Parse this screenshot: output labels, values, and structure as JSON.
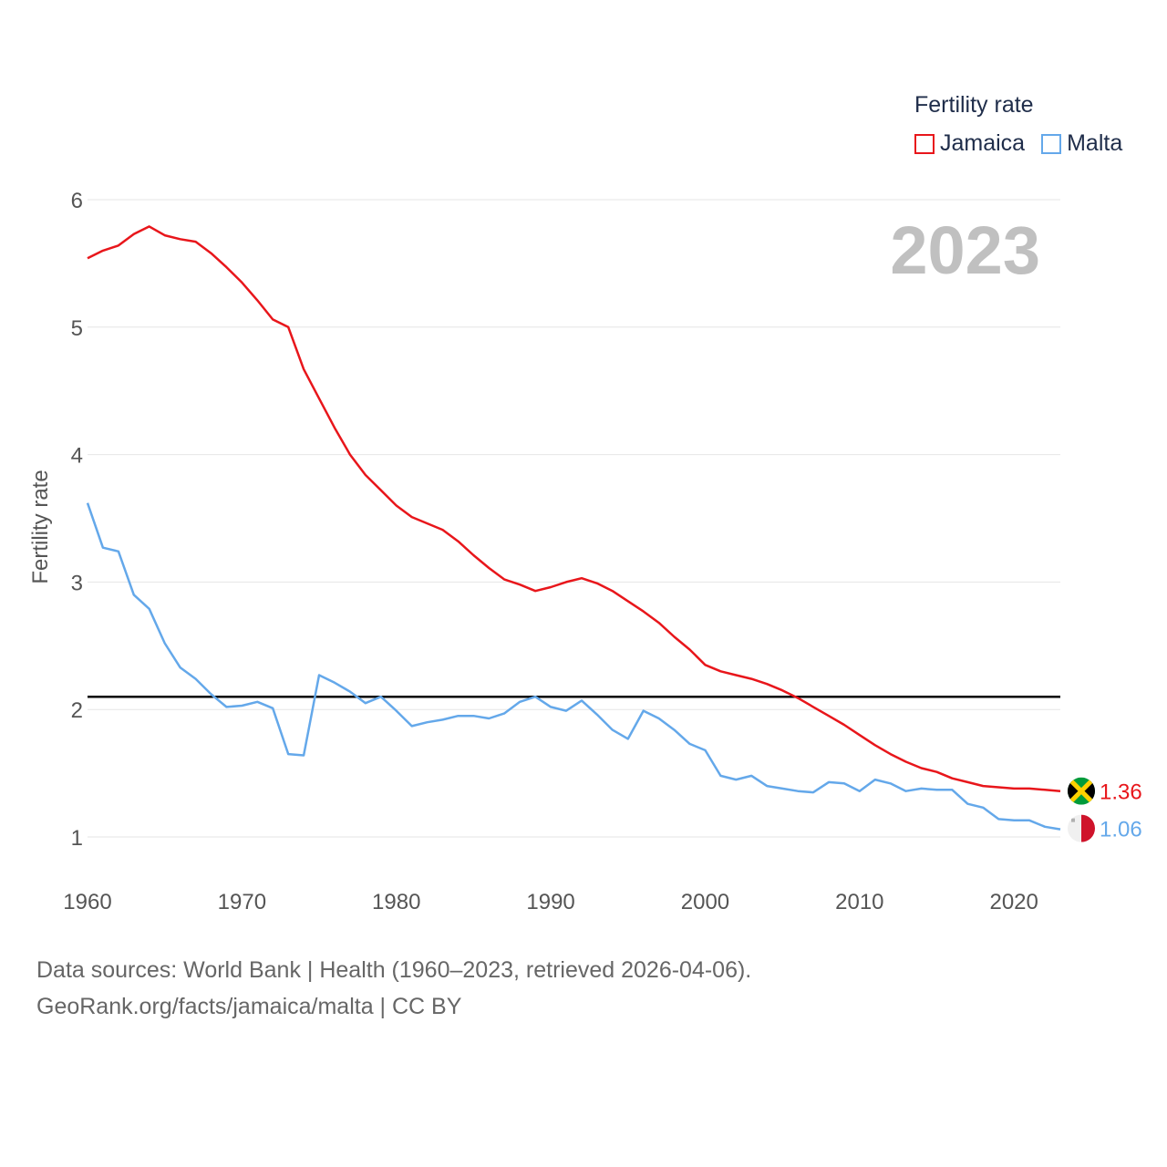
{
  "legend": {
    "title": "Fertility rate",
    "items": [
      {
        "label": "Jamaica",
        "color": "#e8161b"
      },
      {
        "label": "Malta",
        "color": "#64a8ea"
      }
    ]
  },
  "year_label": "2023",
  "sources": {
    "line1": "Data sources: World Bank | Health (1960–2023, retrieved 2026-04-06).",
    "line2": "GeoRank.org/facts/jamaica/malta | CC BY"
  },
  "chart_data": {
    "type": "line",
    "ylabel": "Fertility rate",
    "xlabel": "",
    "xlim": [
      1960,
      2023
    ],
    "ylim": [
      1,
      6
    ],
    "x_ticks": [
      1960,
      1970,
      1980,
      1990,
      2000,
      2010,
      2020
    ],
    "y_ticks": [
      1,
      2,
      3,
      4,
      5,
      6
    ],
    "reference_line": {
      "value": 2.1,
      "color": "#000000"
    },
    "x": [
      1960,
      1961,
      1962,
      1963,
      1964,
      1965,
      1966,
      1967,
      1968,
      1969,
      1970,
      1971,
      1972,
      1973,
      1974,
      1975,
      1976,
      1977,
      1978,
      1979,
      1980,
      1981,
      1982,
      1983,
      1984,
      1985,
      1986,
      1987,
      1988,
      1989,
      1990,
      1991,
      1992,
      1993,
      1994,
      1995,
      1996,
      1997,
      1998,
      1999,
      2000,
      2001,
      2002,
      2003,
      2004,
      2005,
      2006,
      2007,
      2008,
      2009,
      2010,
      2011,
      2012,
      2013,
      2014,
      2015,
      2016,
      2017,
      2018,
      2019,
      2020,
      2021,
      2022,
      2023
    ],
    "series": [
      {
        "name": "Jamaica",
        "color": "#e8161b",
        "end_label": "1.36",
        "values": [
          5.54,
          5.6,
          5.64,
          5.73,
          5.79,
          5.72,
          5.69,
          5.67,
          5.58,
          5.47,
          5.35,
          5.21,
          5.06,
          5.0,
          4.67,
          4.44,
          4.21,
          4.0,
          3.84,
          3.72,
          3.6,
          3.51,
          3.46,
          3.41,
          3.32,
          3.21,
          3.11,
          3.02,
          2.98,
          2.93,
          2.96,
          3.0,
          3.03,
          2.99,
          2.93,
          2.85,
          2.77,
          2.68,
          2.57,
          2.47,
          2.35,
          2.3,
          2.27,
          2.24,
          2.2,
          2.15,
          2.09,
          2.02,
          1.95,
          1.88,
          1.8,
          1.72,
          1.65,
          1.59,
          1.54,
          1.51,
          1.46,
          1.43,
          1.4,
          1.39,
          1.38,
          1.38,
          1.37,
          1.36
        ]
      },
      {
        "name": "Malta",
        "color": "#64a8ea",
        "end_label": "1.06",
        "values": [
          3.62,
          3.27,
          3.24,
          2.9,
          2.79,
          2.52,
          2.33,
          2.24,
          2.12,
          2.02,
          2.03,
          2.06,
          2.01,
          1.65,
          1.64,
          2.27,
          2.21,
          2.14,
          2.05,
          2.1,
          1.99,
          1.87,
          1.9,
          1.92,
          1.95,
          1.95,
          1.93,
          1.97,
          2.06,
          2.1,
          2.02,
          1.99,
          2.07,
          1.96,
          1.84,
          1.77,
          1.99,
          1.93,
          1.84,
          1.73,
          1.68,
          1.48,
          1.45,
          1.48,
          1.4,
          1.38,
          1.36,
          1.35,
          1.43,
          1.42,
          1.36,
          1.45,
          1.42,
          1.36,
          1.38,
          1.37,
          1.37,
          1.26,
          1.23,
          1.14,
          1.13,
          1.13,
          1.08,
          1.06
        ]
      }
    ]
  }
}
